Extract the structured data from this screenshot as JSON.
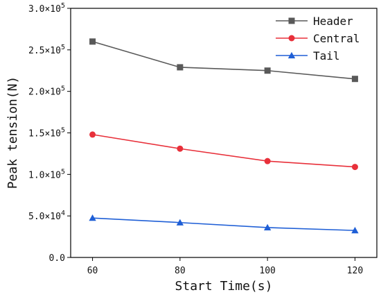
{
  "chart_data": {
    "type": "line",
    "xlabel": "Start Time(s)",
    "ylabel": "Peak tension(N)",
    "x": [
      60,
      80,
      100,
      120
    ],
    "xticks": [
      "60",
      "80",
      "100",
      "120"
    ],
    "xlim": [
      55,
      125
    ],
    "ylim": [
      0,
      300000
    ],
    "yticks": [
      {
        "mantissa": "0.0",
        "exp": ""
      },
      {
        "mantissa": "5.0×10",
        "exp": "4"
      },
      {
        "mantissa": "1.0×10",
        "exp": "5"
      },
      {
        "mantissa": "1.5×10",
        "exp": "5"
      },
      {
        "mantissa": "2.0×10",
        "exp": "5"
      },
      {
        "mantissa": "2.5×10",
        "exp": "5"
      },
      {
        "mantissa": "3.0×10",
        "exp": "5"
      }
    ],
    "grid": false,
    "legend_position": "top-right",
    "series": [
      {
        "name": "Header",
        "color": "#595959",
        "marker": "square",
        "values": [
          260000,
          229000,
          225000,
          215000
        ]
      },
      {
        "name": "Central",
        "color": "#e8303a",
        "marker": "circle",
        "values": [
          148000,
          131000,
          116000,
          109000
        ]
      },
      {
        "name": "Tail",
        "color": "#1f5fd6",
        "marker": "triangle",
        "values": [
          47500,
          42000,
          36000,
          32500
        ]
      }
    ]
  }
}
